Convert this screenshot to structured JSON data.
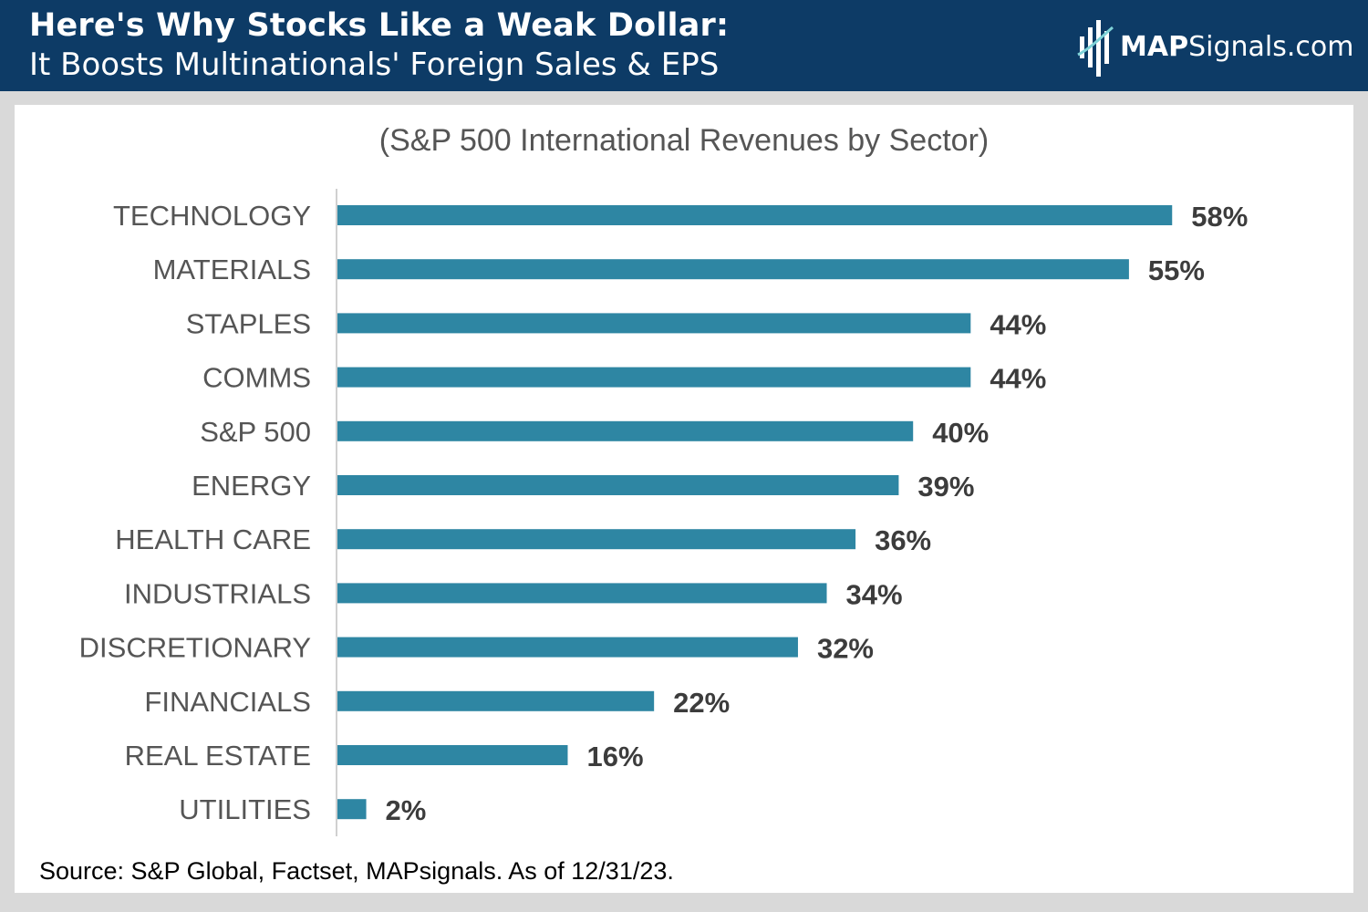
{
  "header": {
    "title": "Here's Why Stocks Like a Weak Dollar:",
    "subtitle": "It Boosts Multinationals' Foreign Sales & EPS",
    "logo_bold": "MAP",
    "logo_rest": "Signals.com"
  },
  "colors": {
    "header_bg": "#0d3b66",
    "bar": "#2e86a3",
    "logo_accent": "#7fd3d8"
  },
  "chart_data": {
    "type": "bar",
    "orientation": "horizontal",
    "title": "(S&P 500 International Revenues by Sector)",
    "xlabel": "",
    "ylabel": "",
    "xlim": [
      0,
      60
    ],
    "grid": false,
    "legend": "none",
    "categories": [
      "TECHNOLOGY",
      "MATERIALS",
      "STAPLES",
      "COMMS",
      "S&P 500",
      "ENERGY",
      "HEALTH CARE",
      "INDUSTRIALS",
      "DISCRETIONARY",
      "FINANCIALS",
      "REAL ESTATE",
      "UTILITIES"
    ],
    "values": [
      58,
      55,
      44,
      44,
      40,
      39,
      36,
      34,
      32,
      22,
      16,
      2
    ],
    "value_labels": [
      "58%",
      "55%",
      "44%",
      "44%",
      "40%",
      "39%",
      "36%",
      "34%",
      "32%",
      "22%",
      "16%",
      "2%"
    ]
  },
  "source": "Source: S&P Global, Factset, MAPsignals. As of 12/31/23."
}
